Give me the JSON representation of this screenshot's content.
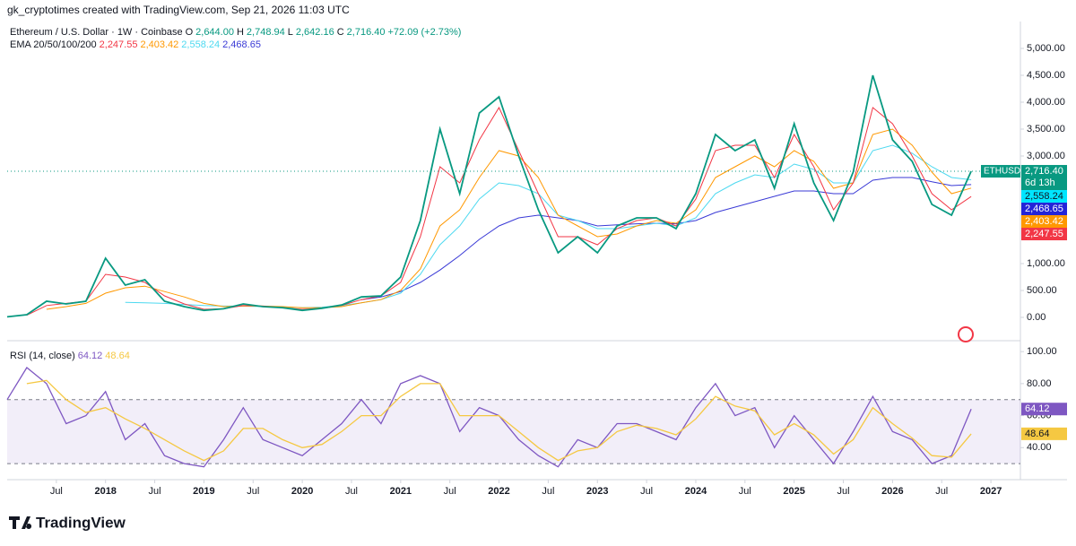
{
  "header": {
    "attribution": "gk_cryptotimes created with TradingView.com, Sep 21, 2026 11:03 UTC",
    "symbol": "Ethereum / U.S. Dollar · 1W · Coinbase",
    "ohlc": [
      {
        "key": "O",
        "value": "2,644.00"
      },
      {
        "key": "H",
        "value": "2,748.94"
      },
      {
        "key": "L",
        "value": "2,642.16"
      },
      {
        "key": "C",
        "value": "2,716.40"
      }
    ],
    "change": "+72.09 (+2.73%)",
    "ema_label": "EMA 20/50/100/200",
    "ema_values": [
      "2,247.55",
      "2,403.42",
      "2,558.24",
      "2,468.65"
    ],
    "ticker": "ETHUSD",
    "last": "2,716.40",
    "countdown": "6d 13h",
    "rsi_label": "RSI (14, close)",
    "rsi_values": [
      "64.12",
      "48.64"
    ]
  },
  "logo": "TradingView",
  "chart_data": [
    {
      "type": "line",
      "xlim": [
        2017.0,
        2027.3
      ],
      "ylim": [
        -433,
        5400
      ],
      "yticks": [
        {
          "value": 0,
          "label": "0.00"
        },
        {
          "value": 500,
          "label": "500.00"
        },
        {
          "value": 1000,
          "label": "1,000.00"
        },
        {
          "value": 3000,
          "label": "3,000.00"
        },
        {
          "value": 3500,
          "label": "3,500.00"
        },
        {
          "value": 4000,
          "label": "4,000.00"
        },
        {
          "value": 4500,
          "label": "4,500.00"
        },
        {
          "value": 5000,
          "label": "5,000.00"
        }
      ],
      "x": [
        2017.0,
        2017.2,
        2017.4,
        2017.6,
        2017.8,
        2018.0,
        2018.2,
        2018.4,
        2018.6,
        2018.8,
        2019.0,
        2019.2,
        2019.4,
        2019.6,
        2019.8,
        2020.0,
        2020.2,
        2020.4,
        2020.6,
        2020.8,
        2021.0,
        2021.2,
        2021.4,
        2021.6,
        2021.8,
        2022.0,
        2022.2,
        2022.4,
        2022.6,
        2022.8,
        2023.0,
        2023.2,
        2023.4,
        2023.6,
        2023.8,
        2024.0,
        2024.2,
        2024.4,
        2024.6,
        2024.8,
        2025.0,
        2025.2,
        2025.4,
        2025.6,
        2025.8,
        2026.0,
        2026.2,
        2026.4,
        2026.6,
        2026.8
      ],
      "series": [
        {
          "name": "ETHUSD",
          "color": "#089981",
          "values": [
            10,
            50,
            300,
            250,
            300,
            1100,
            600,
            700,
            300,
            200,
            130,
            160,
            250,
            200,
            180,
            130,
            170,
            230,
            380,
            400,
            750,
            1800,
            3500,
            2300,
            3800,
            4100,
            3000,
            2000,
            1200,
            1500,
            1200,
            1700,
            1850,
            1850,
            1650,
            2300,
            3400,
            3100,
            3300,
            2400,
            3600,
            2500,
            1800,
            2700,
            4500,
            3300,
            2900,
            2100,
            1900,
            2716.4
          ]
        },
        {
          "name": "EMA 20",
          "color": "#f23645",
          "values": [
            null,
            40,
            220,
            260,
            300,
            800,
            750,
            650,
            400,
            250,
            150,
            160,
            220,
            210,
            180,
            150,
            170,
            220,
            330,
            400,
            650,
            1500,
            2800,
            2500,
            3300,
            3900,
            3100,
            2300,
            1500,
            1500,
            1350,
            1650,
            1800,
            1850,
            1700,
            2200,
            3100,
            3200,
            3200,
            2600,
            3400,
            2800,
            2000,
            2500,
            3900,
            3600,
            3000,
            2300,
            2000,
            2247.55
          ]
        },
        {
          "name": "EMA 50",
          "color": "#ff9800",
          "values": [
            null,
            null,
            150,
            200,
            260,
            450,
            550,
            580,
            480,
            380,
            260,
            200,
            210,
            210,
            200,
            180,
            180,
            200,
            270,
            330,
            500,
            900,
            1700,
            2000,
            2600,
            3100,
            3000,
            2600,
            1900,
            1700,
            1500,
            1550,
            1700,
            1800,
            1750,
            2000,
            2600,
            2800,
            3000,
            2800,
            3100,
            2900,
            2400,
            2500,
            3400,
            3500,
            3200,
            2700,
            2300,
            2403.42
          ]
        },
        {
          "name": "EMA 100",
          "color": "#4dd9f0",
          "values": [
            null,
            null,
            null,
            null,
            null,
            null,
            280,
            270,
            260,
            240,
            220,
            210,
            210,
            200,
            190,
            180,
            190,
            220,
            270,
            330,
            450,
            800,
            1350,
            1700,
            2200,
            2500,
            2450,
            2300,
            1900,
            1800,
            1650,
            1650,
            1700,
            1750,
            1700,
            1850,
            2300,
            2500,
            2650,
            2600,
            2850,
            2750,
            2500,
            2500,
            3100,
            3200,
            3050,
            2800,
            2600,
            2558.24
          ]
        },
        {
          "name": "EMA 200",
          "color": "#3a3ad6",
          "values": [
            null,
            null,
            null,
            null,
            null,
            null,
            null,
            null,
            null,
            null,
            null,
            null,
            null,
            null,
            null,
            null,
            null,
            null,
            330,
            380,
            480,
            650,
            880,
            1150,
            1450,
            1700,
            1850,
            1900,
            1850,
            1800,
            1700,
            1720,
            1740,
            1750,
            1740,
            1800,
            1950,
            2050,
            2150,
            2250,
            2350,
            2350,
            2300,
            2300,
            2550,
            2600,
            2600,
            2520,
            2450,
            2468.65
          ]
        }
      ]
    },
    {
      "type": "line",
      "ylim": [
        20,
        105.7
      ],
      "yticks": [
        {
          "value": 100,
          "label": "100.00"
        },
        {
          "value": 80,
          "label": "80.00"
        },
        {
          "value": 60,
          "label": "60.00"
        },
        {
          "value": 40,
          "label": "40.00"
        }
      ],
      "bands": [
        70,
        30
      ],
      "xticks": [
        {
          "value": 2017.5,
          "label": "Jul"
        },
        2018,
        {
          "value": 2018.5,
          "label": "Jul"
        },
        2019,
        {
          "value": 2019.5,
          "label": "Jul"
        },
        2020,
        {
          "value": 2020.5,
          "label": "Jul"
        },
        2021,
        {
          "value": 2021.5,
          "label": "Jul"
        },
        2022,
        {
          "value": 2022.5,
          "label": "Jul"
        },
        2023,
        {
          "value": 2023.5,
          "label": "Jul"
        },
        2024,
        {
          "value": 2024.5,
          "label": "Jul"
        },
        2025,
        {
          "value": 2025.5,
          "label": "Jul"
        },
        2026,
        {
          "value": 2026.5,
          "label": "Jul"
        },
        2027
      ],
      "series": [
        {
          "name": "RSI",
          "color": "#7e57c2",
          "values": [
            70,
            90,
            80,
            55,
            60,
            75,
            45,
            55,
            35,
            30,
            28,
            45,
            65,
            45,
            40,
            35,
            45,
            55,
            70,
            55,
            80,
            85,
            80,
            50,
            65,
            60,
            45,
            35,
            28,
            45,
            40,
            55,
            55,
            50,
            45,
            65,
            80,
            60,
            65,
            40,
            60,
            45,
            30,
            50,
            72,
            50,
            45,
            30,
            35,
            64.12
          ]
        },
        {
          "name": "RSI MA",
          "color": "#f5c842",
          "values": [
            null,
            80,
            82,
            70,
            62,
            65,
            58,
            52,
            45,
            38,
            32,
            38,
            52,
            52,
            45,
            40,
            42,
            50,
            60,
            60,
            72,
            80,
            80,
            60,
            60,
            60,
            50,
            40,
            32,
            38,
            40,
            50,
            54,
            52,
            48,
            58,
            72,
            66,
            63,
            48,
            55,
            48,
            36,
            45,
            65,
            55,
            46,
            35,
            34,
            48.64
          ]
        }
      ]
    }
  ]
}
